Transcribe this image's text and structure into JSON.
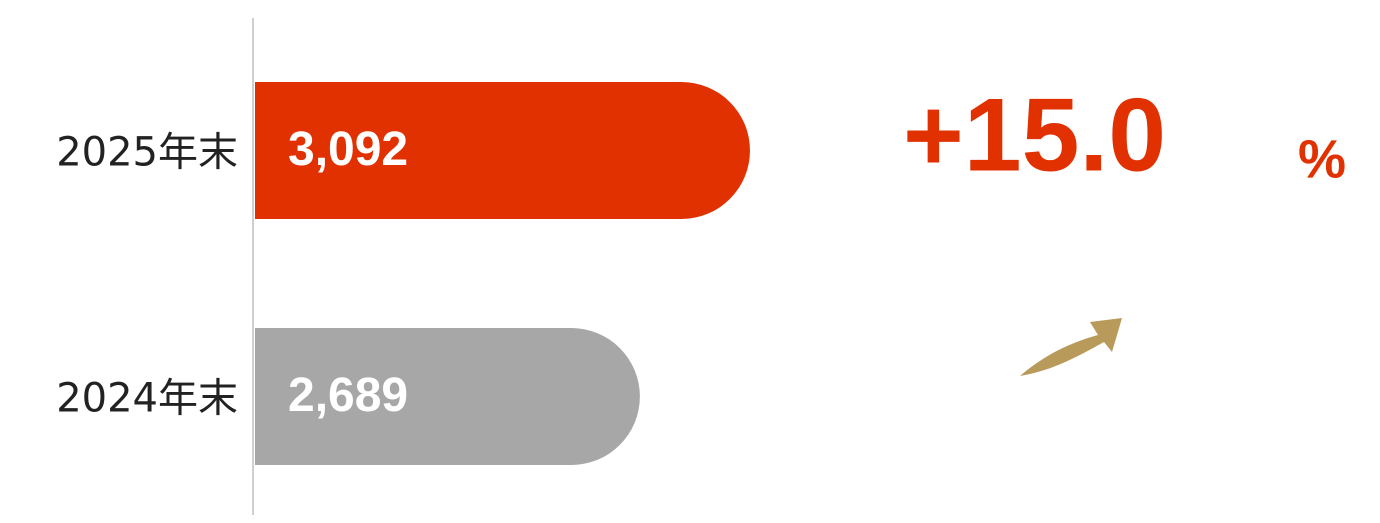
{
  "chart_data": {
    "type": "bar",
    "orientation": "horizontal",
    "categories": [
      "2025年末",
      "2024年末"
    ],
    "series": [
      {
        "values": [
          3092,
          2689
        ],
        "value_labels": [
          "3,092",
          "2,689"
        ],
        "colors": [
          "#e23100",
          "#a7a7a7"
        ]
      }
    ],
    "xlim": [
      1280,
      4000
    ],
    "change": "+15.0",
    "change_unit": "%",
    "change_color": "#e23100"
  }
}
